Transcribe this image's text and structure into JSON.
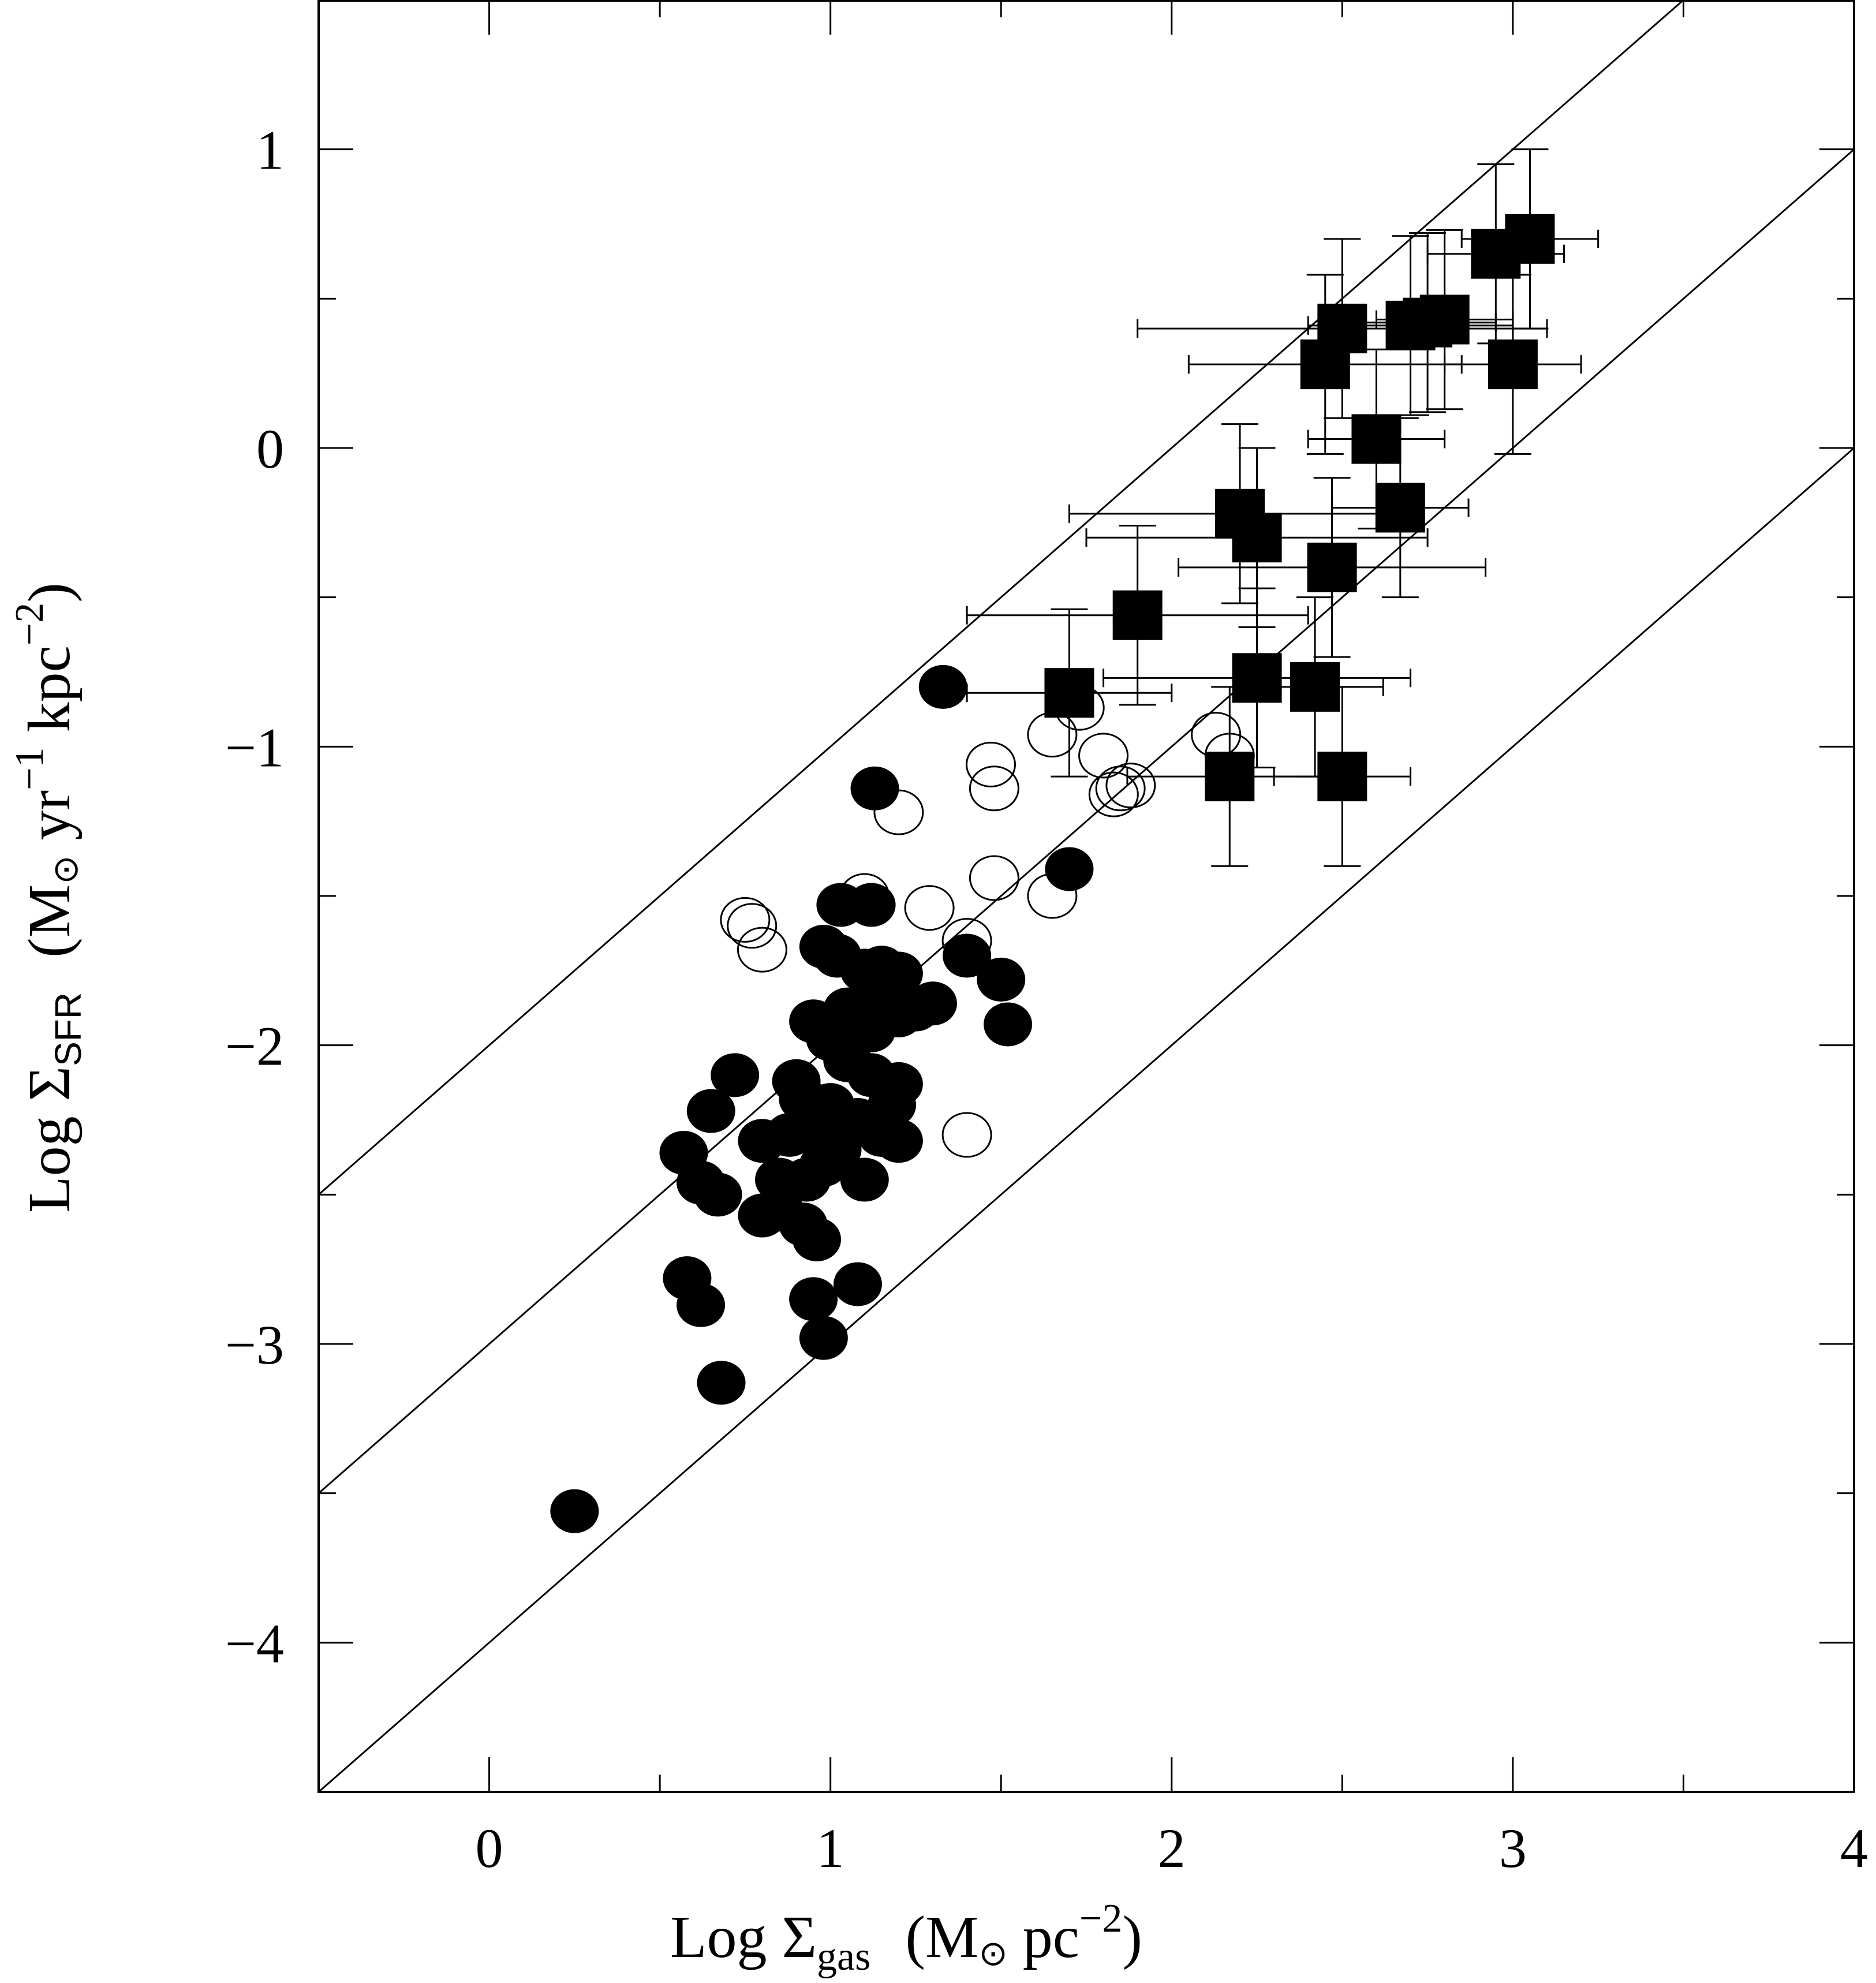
{
  "chart_data": {
    "type": "scatter",
    "xlabel": {
      "prefix": "Log Σ",
      "sub": "gas",
      "units_open": "(M",
      "units_sun": "⊙",
      "units_mid": " pc",
      "units_sup": "−2",
      "units_close": ")"
    },
    "ylabel": {
      "prefix": "Log Σ",
      "sub": "SFR",
      "units_open": "(M",
      "units_sun": "⊙",
      "units_mid1": " yr",
      "units_sup1": "−1",
      "units_mid2": " kpc",
      "units_sup2": "−2",
      "units_close": ")"
    },
    "xlim": [
      -0.5,
      4.0
    ],
    "ylim": [
      -4.5,
      1.5
    ],
    "x_major_ticks": [
      0,
      1,
      2,
      3,
      4
    ],
    "x_minor_ticks": [
      0.5,
      1.5,
      2.5,
      3.5
    ],
    "y_major_ticks": [
      -4,
      -3,
      -2,
      -1,
      0,
      1
    ],
    "y_minor_ticks": [
      -3.5,
      -2.5,
      -1.5,
      -0.5,
      0.5
    ],
    "x_tick_labels": [
      "0",
      "1",
      "2",
      "3",
      "4"
    ],
    "y_tick_labels": [
      "−4",
      "−3",
      "−2",
      "−1",
      "0",
      "1"
    ],
    "grid": false,
    "reference_lines": [
      {
        "slope": 1,
        "intercept": -2.0
      },
      {
        "slope": 1,
        "intercept": -3.0
      },
      {
        "slope": 1,
        "intercept": -4.0
      }
    ],
    "series": [
      {
        "marker": "filled-circle",
        "points": [
          [
            0.25,
            -3.56
          ],
          [
            0.68,
            -3.13
          ],
          [
            0.58,
            -2.78
          ],
          [
            0.62,
            -2.87
          ],
          [
            0.98,
            -2.98
          ],
          [
            0.95,
            -2.85
          ],
          [
            1.08,
            -2.8
          ],
          [
            0.57,
            -2.36
          ],
          [
            0.65,
            -2.22
          ],
          [
            0.67,
            -2.5
          ],
          [
            0.62,
            -2.46
          ],
          [
            0.72,
            -2.1
          ],
          [
            0.8,
            -2.57
          ],
          [
            0.85,
            -2.55
          ],
          [
            0.92,
            -2.6
          ],
          [
            0.96,
            -2.65
          ],
          [
            0.8,
            -2.32
          ],
          [
            0.85,
            -2.45
          ],
          [
            0.88,
            -2.3
          ],
          [
            0.9,
            -2.12
          ],
          [
            0.92,
            -2.18
          ],
          [
            0.93,
            -2.45
          ],
          [
            0.95,
            -2.28
          ],
          [
            0.98,
            -2.4
          ],
          [
            1.0,
            -2.2
          ],
          [
            1.02,
            -2.35
          ],
          [
            1.05,
            -2.05
          ],
          [
            1.08,
            -2.25
          ],
          [
            1.1,
            -2.45
          ],
          [
            1.12,
            -2.1
          ],
          [
            1.15,
            -2.3
          ],
          [
            1.18,
            -2.2
          ],
          [
            1.2,
            -2.32
          ],
          [
            1.2,
            -2.13
          ],
          [
            0.95,
            -1.92
          ],
          [
            1.0,
            -1.98
          ],
          [
            1.05,
            -1.88
          ],
          [
            1.1,
            -1.92
          ],
          [
            1.12,
            -1.95
          ],
          [
            1.15,
            -1.82
          ],
          [
            1.2,
            -1.9
          ],
          [
            1.25,
            -1.88
          ],
          [
            1.3,
            -1.86
          ],
          [
            0.98,
            -1.67
          ],
          [
            1.02,
            -1.7
          ],
          [
            1.1,
            -1.75
          ],
          [
            1.15,
            -1.74
          ],
          [
            1.2,
            -1.76
          ],
          [
            1.03,
            -1.53
          ],
          [
            1.12,
            -1.53
          ],
          [
            1.4,
            -1.7
          ],
          [
            1.5,
            -1.78
          ],
          [
            1.52,
            -1.93
          ],
          [
            1.13,
            -1.14
          ],
          [
            1.33,
            -0.8
          ],
          [
            1.7,
            -1.41
          ]
        ]
      },
      {
        "marker": "open-circle",
        "points": [
          [
            0.75,
            -1.58
          ],
          [
            0.77,
            -1.6
          ],
          [
            0.8,
            -1.68
          ],
          [
            1.1,
            -1.5
          ],
          [
            1.2,
            -1.22
          ],
          [
            1.29,
            -1.54
          ],
          [
            1.4,
            -1.65
          ],
          [
            1.47,
            -1.06
          ],
          [
            1.48,
            -1.14
          ],
          [
            1.48,
            -1.44
          ],
          [
            1.65,
            -1.5
          ],
          [
            1.65,
            -0.96
          ],
          [
            1.73,
            -0.87
          ],
          [
            1.8,
            -1.03
          ],
          [
            1.85,
            -1.14
          ],
          [
            1.83,
            -1.16
          ],
          [
            1.88,
            -1.13
          ],
          [
            1.4,
            -2.3
          ],
          [
            2.13,
            -0.96
          ],
          [
            2.17,
            -1.03
          ]
        ]
      },
      {
        "marker": "filled-square",
        "points": [
          [
            1.7,
            -0.82,
            0.3,
            0.28
          ],
          [
            1.9,
            -0.56,
            0.5,
            0.3
          ],
          [
            2.2,
            -0.22,
            0.5,
            0.3
          ],
          [
            2.25,
            -0.3,
            0.5,
            0.3
          ],
          [
            2.47,
            -0.4,
            0.45,
            0.3
          ],
          [
            2.17,
            -1.1,
            0.3,
            0.3
          ],
          [
            2.5,
            -1.1,
            0.2,
            0.3
          ],
          [
            2.25,
            -0.77,
            0.45,
            0.3
          ],
          [
            2.42,
            -0.8,
            0.2,
            0.3
          ],
          [
            2.6,
            0.03,
            0.2,
            0.3
          ],
          [
            2.67,
            -0.2,
            0.2,
            0.3
          ],
          [
            2.45,
            0.28,
            0.4,
            0.3
          ],
          [
            2.5,
            0.4,
            0.6,
            0.3
          ],
          [
            2.7,
            0.41,
            0.3,
            0.3
          ],
          [
            2.75,
            0.42,
            0.2,
            0.3
          ],
          [
            2.8,
            0.43,
            0.2,
            0.3
          ],
          [
            3.0,
            0.28,
            0.2,
            0.3
          ],
          [
            2.95,
            0.65,
            0.2,
            0.3
          ],
          [
            3.05,
            0.7,
            0.2,
            0.3
          ]
        ]
      }
    ]
  }
}
